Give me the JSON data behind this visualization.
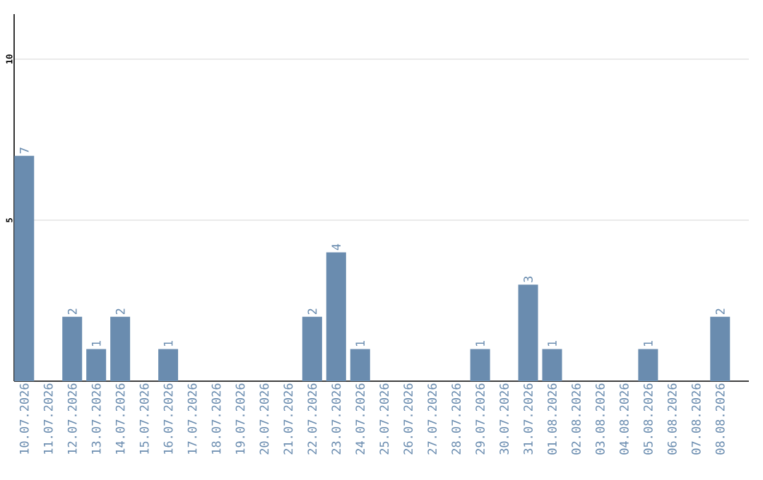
{
  "chart_data": {
    "type": "bar",
    "categories": [
      "10.07.2026",
      "11.07.2026",
      "12.07.2026",
      "13.07.2026",
      "14.07.2026",
      "15.07.2026",
      "16.07.2026",
      "17.07.2026",
      "18.07.2026",
      "19.07.2026",
      "20.07.2026",
      "21.07.2026",
      "22.07.2026",
      "23.07.2026",
      "24.07.2026",
      "25.07.2026",
      "26.07.2026",
      "27.07.2026",
      "28.07.2026",
      "29.07.2026",
      "30.07.2026",
      "31.07.2026",
      "01.08.2026",
      "02.08.2026",
      "03.08.2026",
      "04.08.2026",
      "05.08.2026",
      "06.08.2026",
      "07.08.2026",
      "08.08.2026"
    ],
    "values": [
      7,
      0,
      2,
      1,
      2,
      0,
      1,
      0,
      0,
      0,
      0,
      0,
      2,
      4,
      1,
      0,
      0,
      0,
      0,
      1,
      0,
      3,
      1,
      0,
      0,
      0,
      1,
      0,
      0,
      2
    ],
    "value_labels": [
      "7",
      null,
      "2",
      "1",
      "2",
      null,
      "1",
      null,
      null,
      null,
      null,
      null,
      "2",
      "4",
      "1",
      null,
      null,
      null,
      null,
      "1",
      null,
      "3",
      "1",
      null,
      null,
      null,
      "1",
      null,
      null,
      "2"
    ],
    "color": "#6a8caf",
    "ylim": [
      0,
      11.4
    ],
    "yticks": [
      5,
      10
    ],
    "grid": "y"
  }
}
